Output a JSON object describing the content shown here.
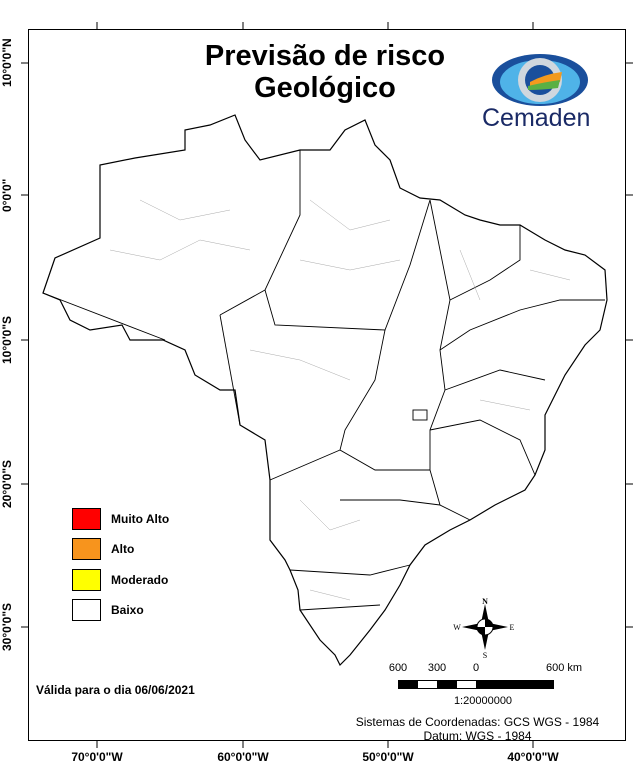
{
  "title_line1": "Previsão de risco",
  "title_line2": "Geológico",
  "logo": {
    "text": "Cemaden",
    "colors": [
      "#1a4f9c",
      "#4fb3e8",
      "#f39a1e",
      "#5ab044"
    ]
  },
  "lat_labels": [
    "10°0'0\"N",
    "0°0'0\"",
    "10°0'0\"S",
    "20°0'0\"S",
    "30°0'0\"S"
  ],
  "lon_labels": [
    "70°0'0\"W",
    "60°0'0\"W",
    "50°0'0\"W",
    "40°0'0\"W"
  ],
  "legend": [
    {
      "label": "Muito Alto",
      "color": "#ff0000"
    },
    {
      "label": "Alto",
      "color": "#f7941d"
    },
    {
      "label": "Moderado",
      "color": "#ffff00"
    },
    {
      "label": "Baixo",
      "color": "#ffffff"
    }
  ],
  "valid_text": "Válida para o dia 06/06/2021",
  "north_arrow": {
    "n": "N",
    "s": "S",
    "e": "E",
    "w": "W"
  },
  "scale": {
    "labels": [
      "600",
      "300",
      "0",
      "600 km"
    ],
    "ratio": "1:20000000"
  },
  "coord_system": "Sistemas de Coordenadas: GCS WGS - 1984",
  "datum": "Datum: WGS - 1984"
}
